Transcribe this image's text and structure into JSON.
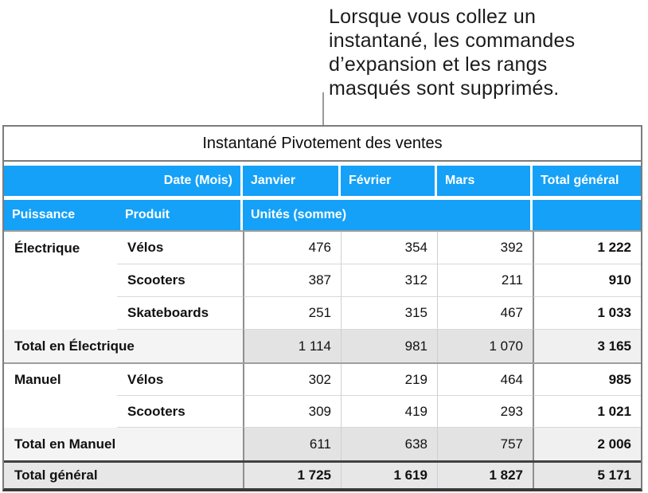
{
  "callout": {
    "text": "Lorsque vous collez un\ninstantané, les commandes\nd’expansion et les rangs\nmasqués sont supprimés."
  },
  "table": {
    "title": "Instantané Pivotement des ventes",
    "header1": {
      "date_label": "Date (Mois)",
      "months": [
        "Janvier",
        "Février",
        "Mars"
      ],
      "grand_label": "Total général"
    },
    "header2": {
      "col1": "Puissance",
      "col2": "Produit",
      "values_label": "Unités (somme)"
    },
    "rows": [
      {
        "puissance": "Électrique",
        "produit": "Vélos",
        "m1": "476",
        "m2": "354",
        "m3": "392",
        "total": "1 222"
      },
      {
        "puissance": "",
        "produit": "Scooters",
        "m1": "387",
        "m2": "312",
        "m3": "211",
        "total": "910"
      },
      {
        "puissance": "",
        "produit": "Skateboards",
        "m1": "251",
        "m2": "315",
        "m3": "467",
        "total": "1 033"
      },
      {
        "label": "Total en Électrique",
        "m1": "1 114",
        "m2": "981",
        "m3": "1 070",
        "total": "3 165"
      },
      {
        "puissance": "Manuel",
        "produit": "Vélos",
        "m1": "302",
        "m2": "219",
        "m3": "464",
        "total": "985"
      },
      {
        "puissance": "",
        "produit": "Scooters",
        "m1": "309",
        "m2": "419",
        "m3": "293",
        "total": "1 021"
      },
      {
        "label": "Total en Manuel",
        "m1": "611",
        "m2": "638",
        "m3": "757",
        "total": "2 006"
      },
      {
        "label": "Total général",
        "m1": "1 725",
        "m2": "1 619",
        "m3": "1 827",
        "total": "5 171"
      }
    ]
  },
  "colors": {
    "header_blue": "#14a1f7",
    "header_text": "#ffffff",
    "subtotal_label_fill": "#f4f4f5",
    "subtotal_month_fill": "#e3e3e4",
    "subtotal_total_fill": "#f0f0f1",
    "grand_row_fill": "#e7e7e8",
    "table_border": "#7c7c7c",
    "strong_border": "#383838",
    "connector_line": "#9a9a9a"
  },
  "chart_data": {
    "type": "table",
    "title": "Instantané Pivotement des ventes",
    "columns": [
      "Puissance",
      "Produit",
      "Janvier",
      "Février",
      "Mars",
      "Total général"
    ],
    "rows": [
      [
        "Électrique",
        "Vélos",
        476,
        354,
        392,
        1222
      ],
      [
        "Électrique",
        "Scooters",
        387,
        312,
        211,
        910
      ],
      [
        "Électrique",
        "Skateboards",
        251,
        315,
        467,
        1033
      ],
      [
        "Total en Électrique",
        "",
        1114,
        981,
        1070,
        3165
      ],
      [
        "Manuel",
        "Vélos",
        302,
        219,
        464,
        985
      ],
      [
        "Manuel",
        "Scooters",
        309,
        419,
        293,
        1021
      ],
      [
        "Total en Manuel",
        "",
        611,
        638,
        757,
        2006
      ],
      [
        "Total général",
        "",
        1725,
        1619,
        1827,
        5171
      ]
    ]
  }
}
